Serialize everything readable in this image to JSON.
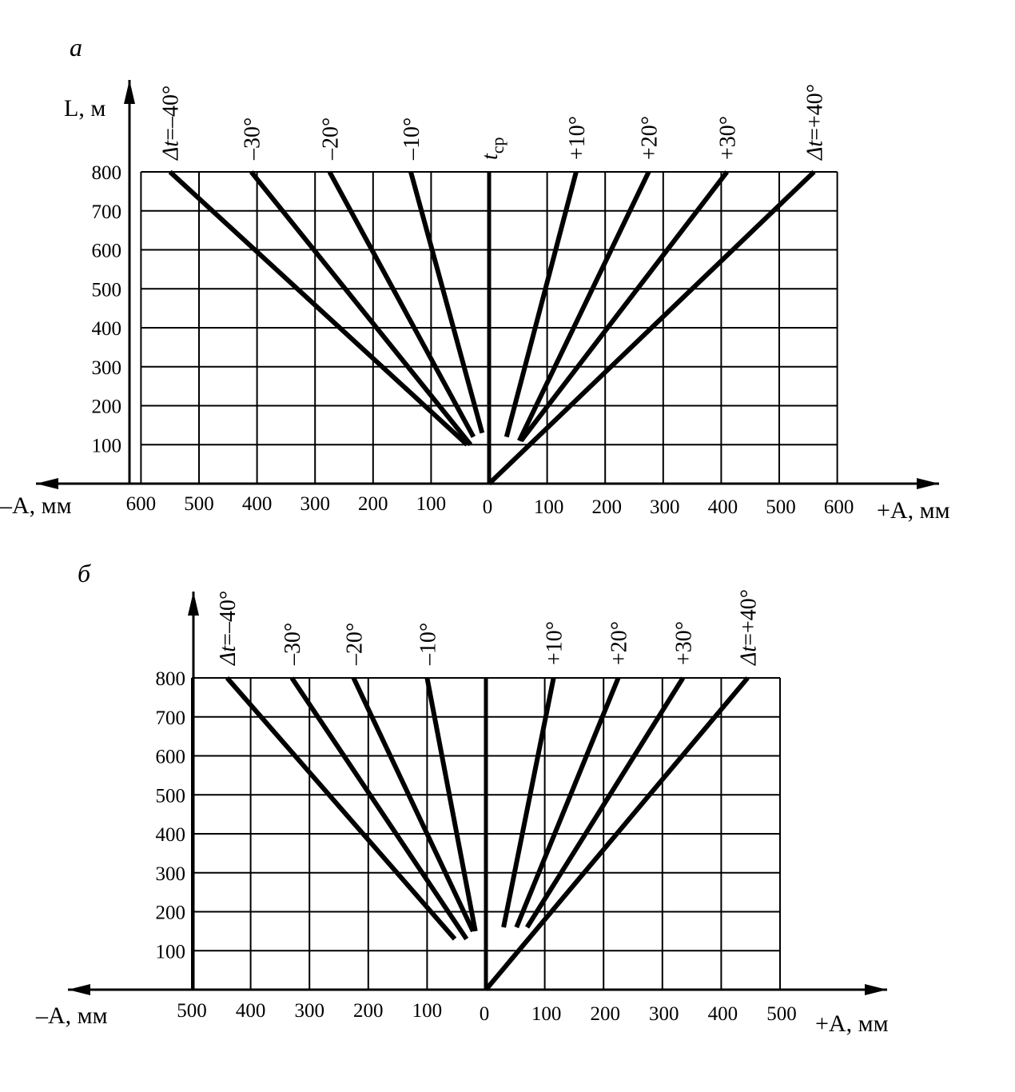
{
  "chart_data": [
    {
      "panel_label": "а",
      "type": "line",
      "ylabel": "L, м",
      "xlabel_left": "–A, мм",
      "xlabel_right": "+A, мм",
      "y_ticks": [
        "100",
        "200",
        "300",
        "400",
        "500",
        "600",
        "700",
        "800"
      ],
      "x_ticks_left": [
        "600",
        "500",
        "400",
        "300",
        "200",
        "100"
      ],
      "x_ticks_right": [
        "0",
        "100",
        "200",
        "300",
        "400",
        "500",
        "600"
      ],
      "xlim": [
        -600,
        600
      ],
      "ylim": [
        0,
        800
      ],
      "grid": true,
      "series": [
        {
          "label_prefix": "Δt",
          "label": "=–40°",
          "dir": -1,
          "points": [
            [
              -38,
              100
            ],
            [
              -550,
              800
            ]
          ]
        },
        {
          "label": "–30°",
          "dir": -1,
          "points": [
            [
              -32,
              100
            ],
            [
              -410,
              800
            ]
          ]
        },
        {
          "label": "–20°",
          "dir": -1,
          "points": [
            [
              -27,
              120
            ],
            [
              -275,
              800
            ]
          ]
        },
        {
          "label": "–10°",
          "dir": -1,
          "points": [
            [
              -12,
              130
            ],
            [
              -135,
              800
            ]
          ]
        },
        {
          "label_prefix": "t",
          "label_sub": "ср",
          "dir": 0,
          "points": [
            [
              0,
              0
            ],
            [
              0,
              800
            ]
          ]
        },
        {
          "label": "+10°",
          "dir": 1,
          "points": [
            [
              30,
              120
            ],
            [
              150,
              800
            ]
          ]
        },
        {
          "label": "+20°",
          "dir": 1,
          "points": [
            [
              52,
              110
            ],
            [
              275,
              800
            ]
          ]
        },
        {
          "label": "+30°",
          "dir": 1,
          "points": [
            [
              55,
              110
            ],
            [
              410,
              800
            ]
          ]
        },
        {
          "label_prefix": "Δt",
          "label": "=+40°",
          "dir": 1,
          "points": [
            [
              0,
              0
            ],
            [
              560,
              800
            ]
          ]
        }
      ]
    },
    {
      "panel_label": "б",
      "type": "line",
      "ylabel": "",
      "xlabel_left": "–A, мм",
      "xlabel_right": "+A, мм",
      "y_ticks": [
        "100",
        "200",
        "300",
        "400",
        "500",
        "600",
        "700",
        "800"
      ],
      "x_ticks_left": [
        "500",
        "400",
        "300",
        "200",
        "100"
      ],
      "x_ticks_right": [
        "0",
        "100",
        "200",
        "300",
        "400",
        "500"
      ],
      "xlim": [
        -500,
        500
      ],
      "ylim": [
        0,
        800
      ],
      "grid": true,
      "series": [
        {
          "label_prefix": "Δt",
          "label": "=–40°",
          "dir": -1,
          "points": [
            [
              -53,
              130
            ],
            [
              -440,
              800
            ]
          ]
        },
        {
          "label": "–30°",
          "dir": -1,
          "points": [
            [
              -33,
              130
            ],
            [
              -330,
              800
            ]
          ]
        },
        {
          "label": "–20°",
          "dir": -1,
          "points": [
            [
              -22,
              150
            ],
            [
              -225,
              800
            ]
          ]
        },
        {
          "label": "–10°",
          "dir": -1,
          "points": [
            [
              -18,
              150
            ],
            [
              -100,
              800
            ]
          ]
        },
        {
          "label": "",
          "dir": 0,
          "points": [
            [
              0,
              0
            ],
            [
              0,
              800
            ]
          ]
        },
        {
          "label": "+10°",
          "dir": 1,
          "points": [
            [
              30,
              160
            ],
            [
              115,
              800
            ]
          ]
        },
        {
          "label": "+20°",
          "dir": 1,
          "points": [
            [
              52,
              160
            ],
            [
              225,
              800
            ]
          ]
        },
        {
          "label": "+30°",
          "dir": 1,
          "points": [
            [
              70,
              160
            ],
            [
              335,
              800
            ]
          ]
        },
        {
          "label_prefix": "Δt",
          "label": "=+40°",
          "dir": 1,
          "points": [
            [
              0,
              0
            ],
            [
              445,
              800
            ]
          ]
        }
      ]
    }
  ]
}
